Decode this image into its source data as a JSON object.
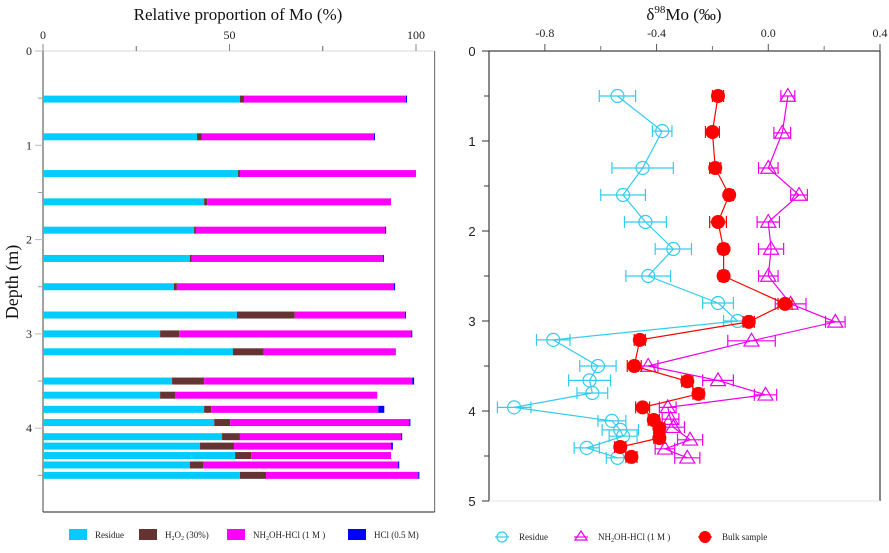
{
  "chart_data": [
    {
      "type": "bar",
      "orientation": "horizontal-stacked",
      "title": "Relative proportion of Mo (%)",
      "xlabel": "Relative proportion of Mo (%)",
      "ylabel": "Depth (m)",
      "xlim": [
        0,
        105
      ],
      "ylim": [
        0,
        4.9
      ],
      "x_ticks": [
        "0",
        "50",
        "100"
      ],
      "x_tick_values": [
        0,
        50,
        100
      ],
      "x_minor_ticks": [
        25,
        75
      ],
      "y_ticks": [
        "0",
        "1",
        "2",
        "3",
        "4"
      ],
      "y_tick_values": [
        0,
        1,
        2,
        3,
        4
      ],
      "y_minor_ticks": [
        0.5,
        1.5,
        2.5,
        3.5,
        4.5
      ],
      "y_inverted": true,
      "categories": [
        0.51,
        0.91,
        1.3,
        1.6,
        1.9,
        2.2,
        2.5,
        2.8,
        3.0,
        3.19,
        3.5,
        3.65,
        3.8,
        3.94,
        4.09,
        4.19,
        4.29,
        4.39,
        4.5
      ],
      "series": [
        {
          "name": "Residue",
          "color": "#00ccff",
          "values": [
            52.8,
            41.3,
            52.3,
            43.2,
            40.5,
            39.4,
            35.1,
            52.0,
            31.4,
            50.9,
            34.6,
            31.4,
            43.2,
            45.9,
            48.0,
            42.1,
            51.5,
            39.4,
            52.8
          ]
        },
        {
          "name": "H2O2 (30%)",
          "label_main": "H",
          "label_sub1": "2",
          "label_mid": "O",
          "label_sub2": "2",
          "label_tail": " (30%)",
          "color": "#663333",
          "values": [
            1.1,
            1.3,
            0.5,
            0.8,
            0.5,
            0.5,
            0.8,
            15.5,
            5.1,
            8.3,
            8.6,
            4.0,
            1.9,
            4.3,
            4.8,
            9.1,
            4.3,
            3.5,
            7.0
          ]
        },
        {
          "name": "NH2OH-HCl (1 M )",
          "label_main": "NH",
          "label_sub1": "2",
          "label_tail": "OH-HCl (1 M )",
          "color": "#ff00ff",
          "values": [
            43.4,
            46.1,
            47.2,
            49.3,
            50.7,
            51.2,
            58.2,
            29.5,
            62.2,
            35.4,
            55.8,
            54.2,
            44.8,
            48.0,
            43.2,
            42.1,
            37.5,
            52.3,
            40.8
          ]
        },
        {
          "name": "HCl (0.5 M)",
          "color": "#0000ff",
          "values": [
            0.3,
            0.3,
            0.0,
            0.0,
            0.3,
            0.3,
            0.3,
            0.3,
            0.3,
            0.0,
            0.5,
            0.0,
            1.6,
            0.3,
            0.3,
            0.5,
            0.0,
            0.3,
            0.3
          ]
        }
      ],
      "legend": "bottom"
    },
    {
      "type": "line",
      "title": "δ98Mo (‰)",
      "title_delta": "δ",
      "title_sup": "98",
      "title_rest": "Mo (‰)",
      "xlabel": "δ98Mo (‰)",
      "ylabel": "",
      "xlim": [
        -1.0,
        0.4
      ],
      "ylim": [
        0,
        5
      ],
      "y_inverted": true,
      "x_ticks": [
        "-0.8",
        "-0.4",
        "0.0",
        "0.4"
      ],
      "x_tick_values": [
        -0.8,
        -0.4,
        0.0,
        0.4
      ],
      "x_minor_ticks": [
        -0.6,
        -0.2,
        0.2
      ],
      "y_ticks": [
        "0",
        "1",
        "2",
        "3",
        "4",
        "5"
      ],
      "y_tick_values": [
        0,
        1,
        2,
        3,
        4,
        5
      ],
      "y_minor_ticks": [
        0.5,
        1.5,
        2.5,
        3.5,
        4.5
      ],
      "series": [
        {
          "name": "Residue",
          "marker": "open-circle",
          "color": "#33ccee",
          "depth": [
            0.5,
            0.89,
            1.3,
            1.6,
            1.9,
            2.2,
            2.5,
            2.8,
            3.0,
            3.21,
            3.5,
            3.66,
            3.8,
            3.96,
            4.11,
            4.21,
            4.28,
            4.41,
            4.52
          ],
          "values": [
            -0.54,
            -0.38,
            -0.45,
            -0.52,
            -0.44,
            -0.34,
            -0.43,
            -0.18,
            -0.11,
            -0.77,
            -0.61,
            -0.64,
            -0.63,
            -0.91,
            -0.56,
            -0.53,
            -0.52,
            -0.65,
            -0.54
          ],
          "errors": [
            0.065,
            0.035,
            0.11,
            0.08,
            0.075,
            0.065,
            0.08,
            0.055,
            0.05,
            0.06,
            0.065,
            0.075,
            0.055,
            0.06,
            0.05,
            0.065,
            0.05,
            0.045,
            0.04
          ]
        },
        {
          "name": "NH2OH-HCl (1 M )",
          "label_main": "NH",
          "label_sub1": "2",
          "label_tail": "OH-HCl (1 M )",
          "marker": "open-triangle",
          "color": "#ee00ee",
          "depth": [
            0.5,
            0.91,
            1.3,
            1.6,
            1.9,
            2.2,
            2.5,
            2.81,
            3.01,
            3.22,
            3.5,
            3.66,
            3.82,
            3.96,
            4.09,
            4.18,
            4.32,
            4.42,
            4.52
          ],
          "values": [
            0.07,
            0.05,
            0.0,
            0.11,
            0.0,
            0.01,
            0.0,
            0.08,
            0.24,
            -0.06,
            -0.43,
            -0.18,
            -0.01,
            -0.36,
            -0.35,
            -0.34,
            -0.28,
            -0.37,
            -0.29
          ],
          "errors": [
            0.025,
            0.03,
            0.035,
            0.03,
            0.04,
            0.045,
            0.035,
            0.055,
            0.035,
            0.085,
            0.035,
            0.055,
            0.04,
            0.03,
            0.03,
            0.04,
            0.045,
            0.035,
            0.045
          ]
        },
        {
          "name": "Bulk sample",
          "marker": "filled-circle",
          "color": "#ff0000",
          "depth": [
            0.5,
            0.9,
            1.3,
            1.6,
            1.9,
            2.2,
            2.5,
            2.81,
            3.01,
            3.21,
            3.5,
            3.67,
            3.81,
            3.96,
            4.1,
            4.19,
            4.3,
            4.4,
            4.51
          ],
          "values": [
            -0.18,
            -0.2,
            -0.19,
            -0.14,
            -0.18,
            -0.16,
            -0.16,
            0.06,
            -0.07,
            -0.46,
            -0.48,
            -0.29,
            -0.25,
            -0.45,
            -0.41,
            -0.39,
            -0.39,
            -0.53,
            -0.49
          ],
          "errors": [
            0.02,
            0.025,
            0.02,
            0.015,
            0.03,
            0.015,
            0.015,
            0.025,
            0.02,
            0.02,
            0.025,
            0.02,
            0.02,
            0.025,
            0.02,
            0.02,
            0.02,
            0.02,
            0.02
          ]
        }
      ],
      "legend": "bottom"
    }
  ]
}
